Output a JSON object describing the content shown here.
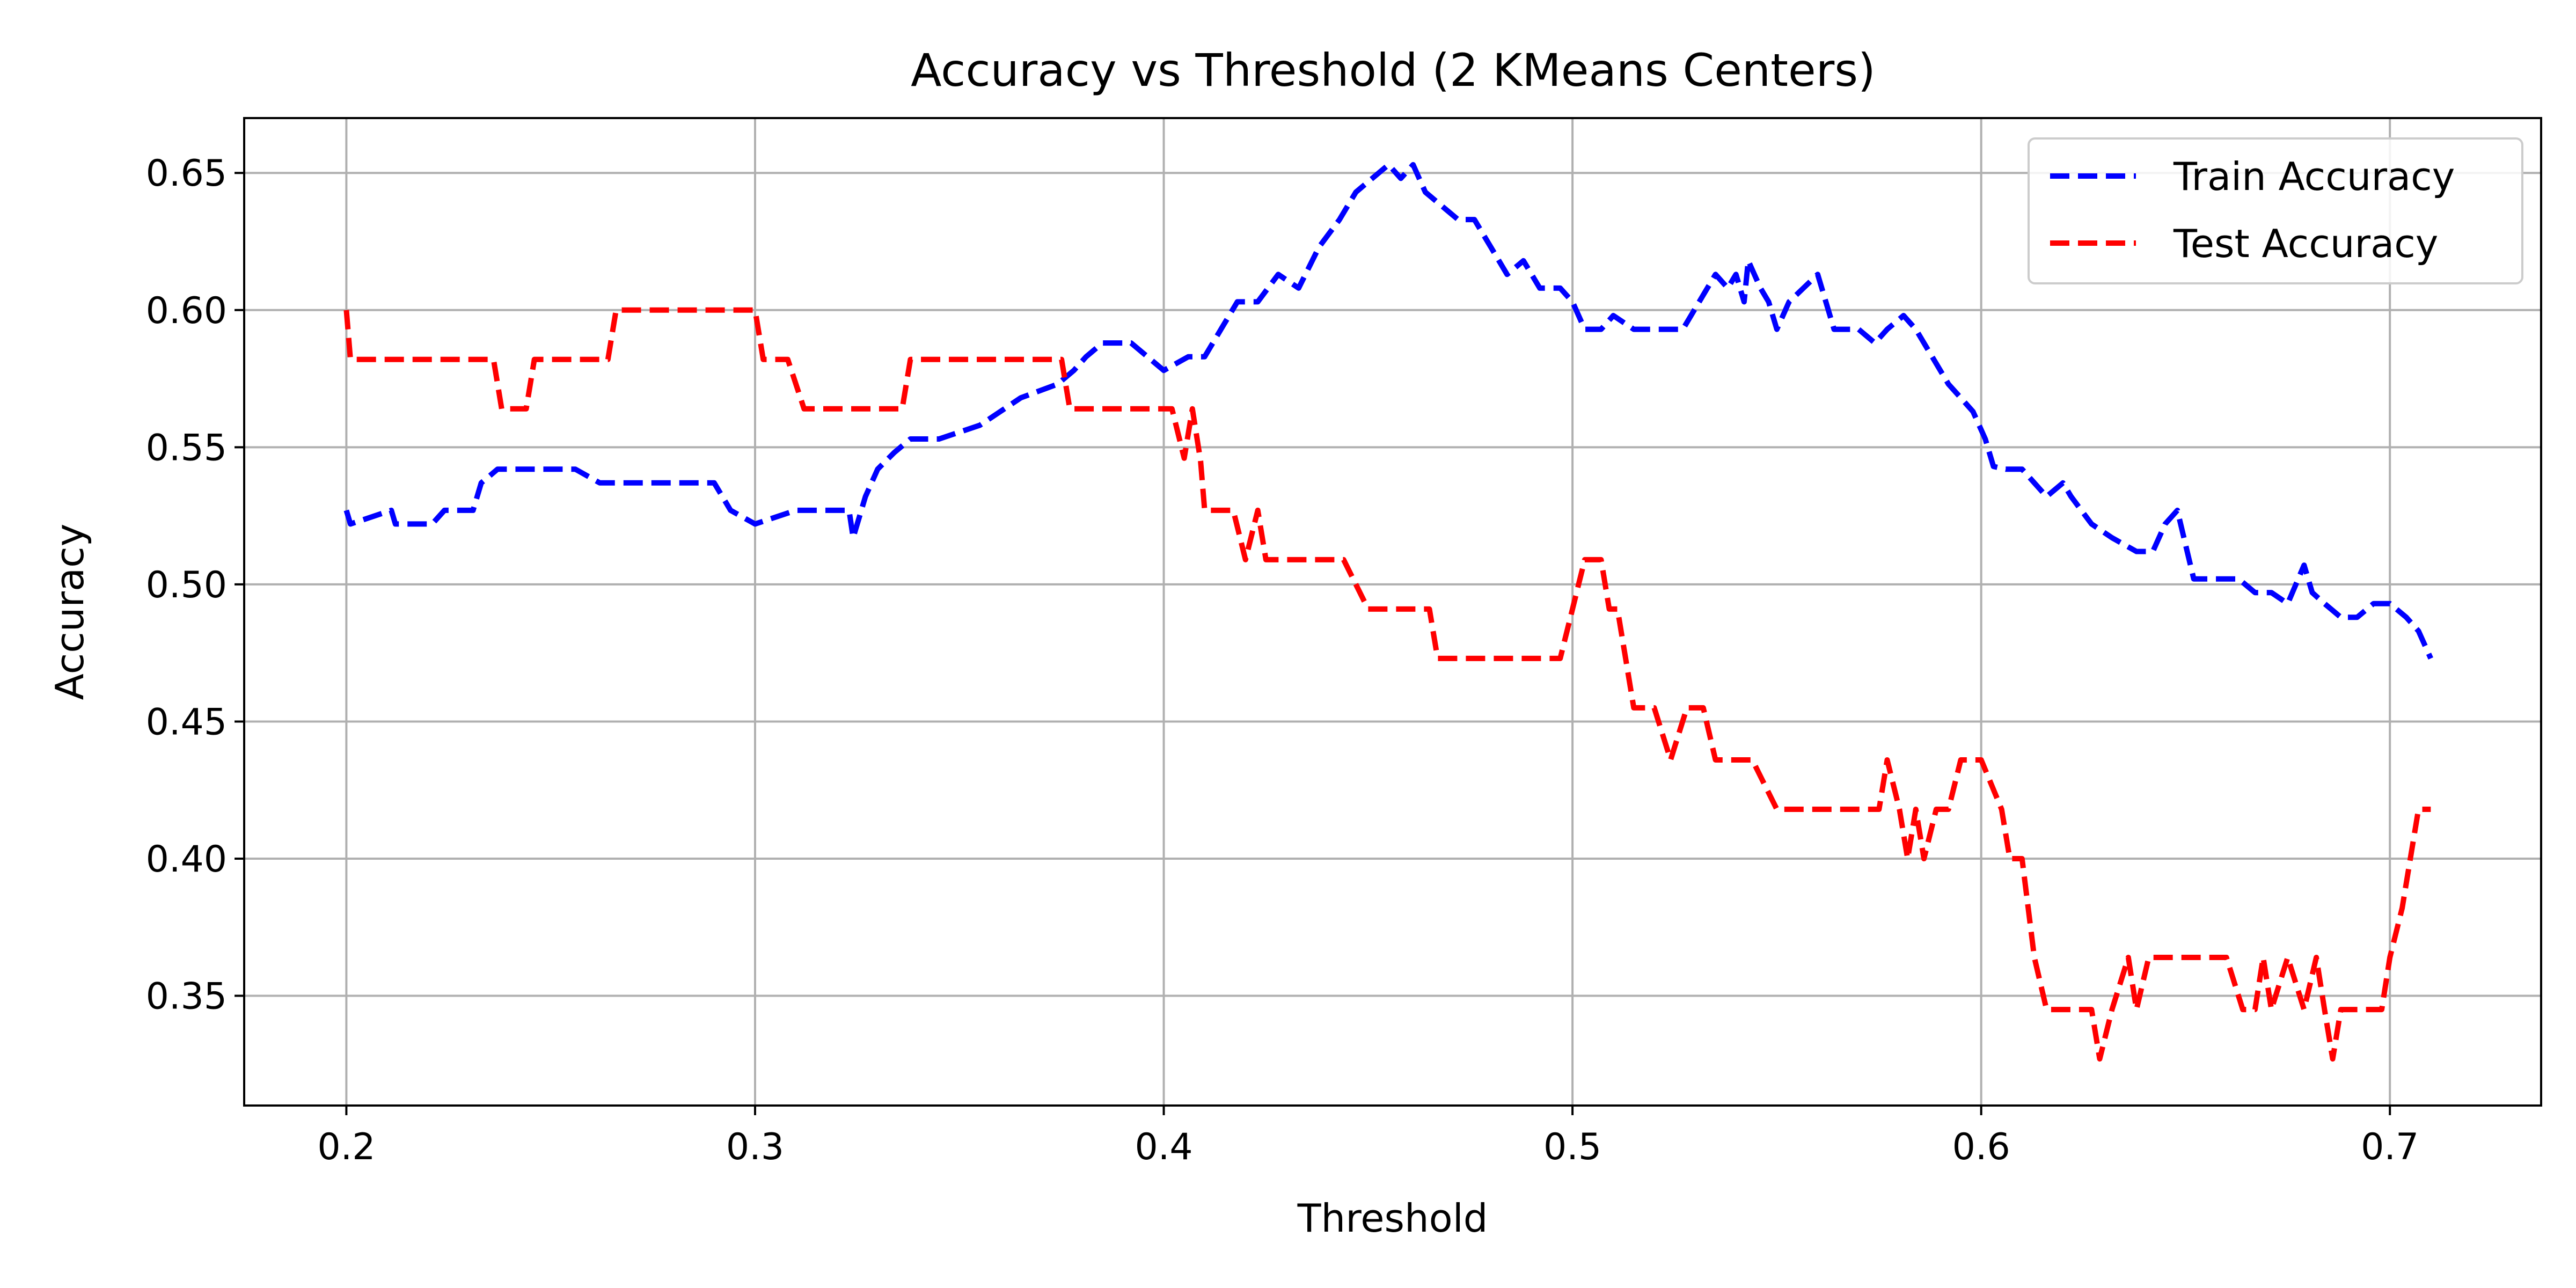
{
  "chart_data": {
    "type": "line",
    "title": "Accuracy vs Threshold (2 KMeans Centers)",
    "xlabel": "Threshold",
    "ylabel": "Accuracy",
    "xlim": [
      0.175,
      0.737
    ],
    "ylim": [
      0.31,
      0.67
    ],
    "xticks": [
      0.2,
      0.3,
      0.4,
      0.5,
      0.6,
      0.7
    ],
    "xtick_labels": [
      "0.2",
      "0.3",
      "0.4",
      "0.5",
      "0.6",
      "0.7"
    ],
    "yticks": [
      0.35,
      0.4,
      0.45,
      0.5,
      0.55,
      0.6,
      0.65
    ],
    "ytick_labels": [
      "0.35",
      "0.40",
      "0.45",
      "0.50",
      "0.55",
      "0.60",
      "0.65"
    ],
    "grid": true,
    "legend_position": "top-right",
    "series": [
      {
        "name": "Train Accuracy",
        "color": "#0000ff",
        "style": "dashed",
        "x": [
          0.2,
          0.201,
          0.211,
          0.212,
          0.221,
          0.224,
          0.231,
          0.233,
          0.237,
          0.245,
          0.256,
          0.262,
          0.275,
          0.285,
          0.29,
          0.294,
          0.3,
          0.31,
          0.323,
          0.324,
          0.327,
          0.33,
          0.334,
          0.338,
          0.345,
          0.355,
          0.36,
          0.365,
          0.374,
          0.378,
          0.381,
          0.385,
          0.392,
          0.4,
          0.406,
          0.41,
          0.414,
          0.418,
          0.423,
          0.428,
          0.433,
          0.438,
          0.443,
          0.447,
          0.451,
          0.455,
          0.458,
          0.461,
          0.464,
          0.468,
          0.472,
          0.476,
          0.48,
          0.484,
          0.488,
          0.492,
          0.497,
          0.5,
          0.503,
          0.507,
          0.51,
          0.515,
          0.52,
          0.527,
          0.531,
          0.535,
          0.538,
          0.54,
          0.542,
          0.543,
          0.546,
          0.548,
          0.55,
          0.553,
          0.56,
          0.564,
          0.566,
          0.57,
          0.574,
          0.577,
          0.581,
          0.584,
          0.588,
          0.592,
          0.595,
          0.598,
          0.601,
          0.603,
          0.606,
          0.61,
          0.616,
          0.62,
          0.622,
          0.627,
          0.632,
          0.638,
          0.642,
          0.645,
          0.648,
          0.652,
          0.658,
          0.663,
          0.667,
          0.671,
          0.675,
          0.679,
          0.681,
          0.684,
          0.688,
          0.692,
          0.696,
          0.7,
          0.704,
          0.707,
          0.71
        ],
        "y": [
          0.527,
          0.522,
          0.527,
          0.522,
          0.522,
          0.527,
          0.527,
          0.537,
          0.542,
          0.542,
          0.542,
          0.537,
          0.537,
          0.537,
          0.537,
          0.527,
          0.522,
          0.527,
          0.527,
          0.517,
          0.532,
          0.542,
          0.548,
          0.553,
          0.553,
          0.558,
          0.563,
          0.568,
          0.573,
          0.578,
          0.583,
          0.588,
          0.588,
          0.578,
          0.583,
          0.583,
          0.593,
          0.603,
          0.603,
          0.613,
          0.608,
          0.623,
          0.633,
          0.643,
          0.648,
          0.653,
          0.648,
          0.653,
          0.643,
          0.638,
          0.633,
          0.633,
          0.623,
          0.613,
          0.618,
          0.608,
          0.608,
          0.603,
          0.593,
          0.593,
          0.598,
          0.593,
          0.593,
          0.593,
          0.603,
          0.613,
          0.608,
          0.613,
          0.603,
          0.618,
          0.608,
          0.603,
          0.593,
          0.603,
          0.613,
          0.593,
          0.593,
          0.593,
          0.588,
          0.593,
          0.598,
          0.593,
          0.583,
          0.573,
          0.568,
          0.563,
          0.553,
          0.543,
          0.542,
          0.542,
          0.532,
          0.537,
          0.532,
          0.522,
          0.517,
          0.512,
          0.512,
          0.522,
          0.527,
          0.502,
          0.502,
          0.502,
          0.497,
          0.497,
          0.493,
          0.507,
          0.497,
          0.493,
          0.488,
          0.488,
          0.493,
          0.493,
          0.488,
          0.483,
          0.473
        ]
      },
      {
        "name": "Test Accuracy",
        "color": "#ff0000",
        "style": "dashed",
        "x": [
          0.2,
          0.201,
          0.222,
          0.236,
          0.238,
          0.244,
          0.246,
          0.255,
          0.264,
          0.266,
          0.28,
          0.297,
          0.3,
          0.302,
          0.308,
          0.312,
          0.325,
          0.336,
          0.338,
          0.34,
          0.353,
          0.36,
          0.367,
          0.375,
          0.377,
          0.38,
          0.385,
          0.392,
          0.397,
          0.402,
          0.405,
          0.407,
          0.409,
          0.41,
          0.417,
          0.42,
          0.423,
          0.425,
          0.428,
          0.434,
          0.444,
          0.45,
          0.455,
          0.465,
          0.467,
          0.472,
          0.485,
          0.497,
          0.5,
          0.503,
          0.507,
          0.509,
          0.511,
          0.515,
          0.52,
          0.524,
          0.528,
          0.532,
          0.535,
          0.544,
          0.55,
          0.56,
          0.568,
          0.575,
          0.577,
          0.58,
          0.582,
          0.584,
          0.586,
          0.589,
          0.592,
          0.595,
          0.6,
          0.605,
          0.607,
          0.61,
          0.613,
          0.616,
          0.622,
          0.627,
          0.629,
          0.632,
          0.636,
          0.638,
          0.641,
          0.645,
          0.655,
          0.66,
          0.664,
          0.667,
          0.669,
          0.671,
          0.675,
          0.679,
          0.682,
          0.684,
          0.686,
          0.688,
          0.698,
          0.7,
          0.703,
          0.705,
          0.707,
          0.71
        ],
        "y": [
          0.6,
          0.582,
          0.582,
          0.582,
          0.564,
          0.564,
          0.582,
          0.582,
          0.582,
          0.6,
          0.6,
          0.6,
          0.6,
          0.582,
          0.582,
          0.564,
          0.564,
          0.564,
          0.582,
          0.582,
          0.582,
          0.582,
          0.582,
          0.582,
          0.564,
          0.564,
          0.564,
          0.564,
          0.564,
          0.564,
          0.546,
          0.564,
          0.545,
          0.527,
          0.527,
          0.509,
          0.527,
          0.509,
          0.509,
          0.509,
          0.509,
          0.491,
          0.491,
          0.491,
          0.473,
          0.473,
          0.473,
          0.473,
          0.491,
          0.509,
          0.509,
          0.491,
          0.491,
          0.455,
          0.455,
          0.436,
          0.455,
          0.455,
          0.436,
          0.436,
          0.418,
          0.418,
          0.418,
          0.418,
          0.436,
          0.418,
          0.4,
          0.418,
          0.4,
          0.418,
          0.418,
          0.436,
          0.436,
          0.418,
          0.4,
          0.4,
          0.364,
          0.345,
          0.345,
          0.345,
          0.327,
          0.345,
          0.364,
          0.345,
          0.364,
          0.364,
          0.364,
          0.364,
          0.345,
          0.345,
          0.364,
          0.345,
          0.364,
          0.345,
          0.364,
          0.345,
          0.327,
          0.345,
          0.345,
          0.364,
          0.382,
          0.4,
          0.418,
          0.418
        ]
      }
    ]
  }
}
